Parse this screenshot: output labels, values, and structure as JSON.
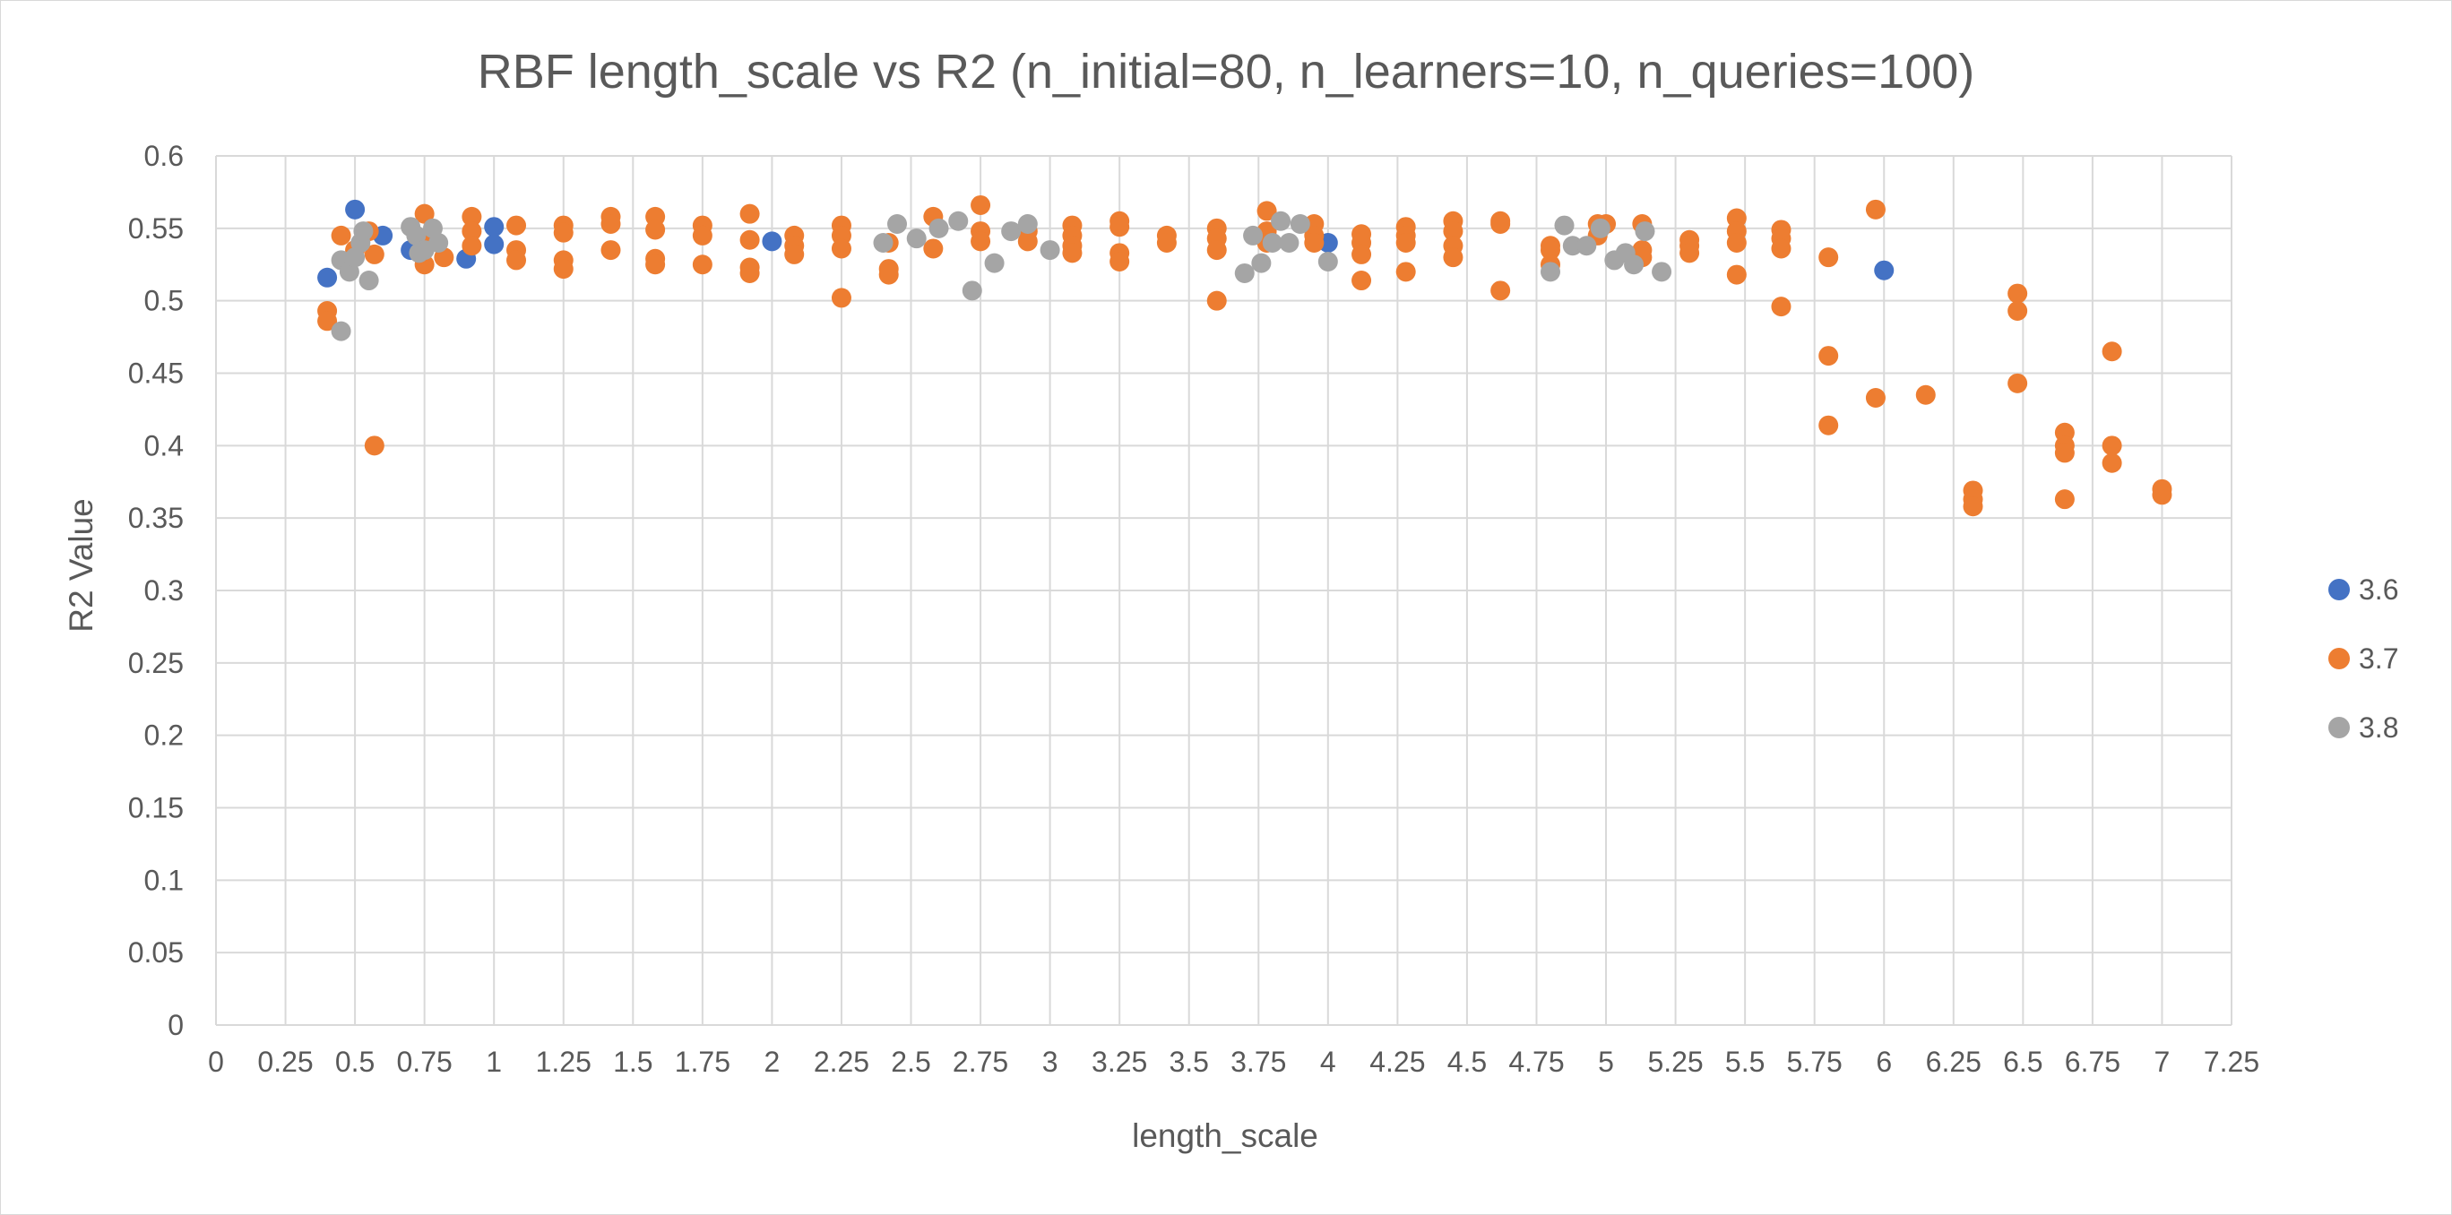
{
  "chart_data": {
    "type": "scatter",
    "title": "RBF length_scale vs R2 (n_initial=80, n_learners=10, n_queries=100)",
    "xlabel": "length_scale",
    "ylabel": "R2 Value",
    "xlim": [
      0,
      7.25
    ],
    "ylim": [
      0,
      0.6
    ],
    "x_ticks": [
      "0",
      "0.25",
      "0.5",
      "0.75",
      "1",
      "1.25",
      "1.5",
      "1.75",
      "2",
      "2.25",
      "2.5",
      "2.75",
      "3",
      "3.25",
      "3.5",
      "3.75",
      "4",
      "4.25",
      "4.5",
      "4.75",
      "5",
      "5.25",
      "5.5",
      "5.75",
      "6",
      "6.25",
      "6.5",
      "6.75",
      "7",
      "7.25"
    ],
    "y_ticks": [
      "0",
      "0.05",
      "0.1",
      "0.15",
      "0.2",
      "0.25",
      "0.3",
      "0.35",
      "0.4",
      "0.45",
      "0.5",
      "0.55",
      "0.6"
    ],
    "grid": true,
    "legend_position": "right",
    "series": [
      {
        "name": "3.6",
        "color": "#4472C4",
        "points": [
          [
            0.4,
            0.516
          ],
          [
            0.5,
            0.563
          ],
          [
            0.6,
            0.545
          ],
          [
            0.9,
            0.529
          ],
          [
            1.0,
            0.551
          ],
          [
            1.0,
            0.539
          ],
          [
            2.0,
            0.541
          ],
          [
            4.0,
            0.54
          ],
          [
            6.0,
            0.521
          ],
          [
            0.7,
            0.535
          ]
        ]
      },
      {
        "name": "3.7",
        "color": "#ED7D31",
        "points": [
          [
            0.4,
            0.493
          ],
          [
            0.4,
            0.486
          ],
          [
            0.45,
            0.545
          ],
          [
            0.5,
            0.535
          ],
          [
            0.55,
            0.548
          ],
          [
            0.57,
            0.532
          ],
          [
            0.57,
            0.4
          ],
          [
            0.75,
            0.56
          ],
          [
            0.75,
            0.525
          ],
          [
            0.75,
            0.54
          ],
          [
            0.82,
            0.53
          ],
          [
            0.92,
            0.558
          ],
          [
            0.92,
            0.548
          ],
          [
            0.92,
            0.538
          ],
          [
            1.08,
            0.552
          ],
          [
            1.08,
            0.535
          ],
          [
            1.08,
            0.528
          ],
          [
            1.25,
            0.552
          ],
          [
            1.25,
            0.547
          ],
          [
            1.25,
            0.528
          ],
          [
            1.25,
            0.522
          ],
          [
            1.42,
            0.558
          ],
          [
            1.42,
            0.553
          ],
          [
            1.42,
            0.535
          ],
          [
            1.58,
            0.558
          ],
          [
            1.58,
            0.549
          ],
          [
            1.58,
            0.529
          ],
          [
            1.58,
            0.525
          ],
          [
            1.75,
            0.552
          ],
          [
            1.75,
            0.545
          ],
          [
            1.75,
            0.525
          ],
          [
            1.92,
            0.56
          ],
          [
            1.92,
            0.542
          ],
          [
            1.92,
            0.523
          ],
          [
            1.92,
            0.519
          ],
          [
            2.08,
            0.545
          ],
          [
            2.08,
            0.538
          ],
          [
            2.08,
            0.532
          ],
          [
            2.25,
            0.552
          ],
          [
            2.25,
            0.545
          ],
          [
            2.25,
            0.536
          ],
          [
            2.25,
            0.502
          ],
          [
            2.42,
            0.54
          ],
          [
            2.42,
            0.522
          ],
          [
            2.42,
            0.518
          ],
          [
            2.58,
            0.558
          ],
          [
            2.58,
            0.536
          ],
          [
            2.75,
            0.566
          ],
          [
            2.75,
            0.548
          ],
          [
            2.75,
            0.541
          ],
          [
            2.92,
            0.548
          ],
          [
            2.92,
            0.541
          ],
          [
            3.08,
            0.552
          ],
          [
            3.08,
            0.545
          ],
          [
            3.08,
            0.538
          ],
          [
            3.08,
            0.533
          ],
          [
            3.25,
            0.555
          ],
          [
            3.25,
            0.551
          ],
          [
            3.25,
            0.533
          ],
          [
            3.25,
            0.527
          ],
          [
            3.42,
            0.545
          ],
          [
            3.42,
            0.54
          ],
          [
            3.6,
            0.55
          ],
          [
            3.6,
            0.543
          ],
          [
            3.6,
            0.535
          ],
          [
            3.6,
            0.5
          ],
          [
            3.78,
            0.562
          ],
          [
            3.78,
            0.548
          ],
          [
            3.78,
            0.54
          ],
          [
            3.95,
            0.553
          ],
          [
            3.95,
            0.545
          ],
          [
            3.95,
            0.54
          ],
          [
            4.12,
            0.546
          ],
          [
            4.12,
            0.54
          ],
          [
            4.12,
            0.532
          ],
          [
            4.12,
            0.514
          ],
          [
            4.28,
            0.551
          ],
          [
            4.28,
            0.545
          ],
          [
            4.28,
            0.54
          ],
          [
            4.28,
            0.52
          ],
          [
            4.45,
            0.555
          ],
          [
            4.45,
            0.548
          ],
          [
            4.45,
            0.538
          ],
          [
            4.45,
            0.53
          ],
          [
            4.62,
            0.555
          ],
          [
            4.62,
            0.553
          ],
          [
            4.62,
            0.507
          ],
          [
            4.8,
            0.538
          ],
          [
            4.8,
            0.535
          ],
          [
            4.8,
            0.525
          ],
          [
            4.97,
            0.553
          ],
          [
            4.97,
            0.545
          ],
          [
            5.0,
            0.553
          ],
          [
            5.13,
            0.553
          ],
          [
            5.13,
            0.535
          ],
          [
            5.13,
            0.53
          ],
          [
            5.3,
            0.542
          ],
          [
            5.3,
            0.538
          ],
          [
            5.3,
            0.533
          ],
          [
            5.47,
            0.557
          ],
          [
            5.47,
            0.548
          ],
          [
            5.47,
            0.54
          ],
          [
            5.47,
            0.518
          ],
          [
            5.63,
            0.549
          ],
          [
            5.63,
            0.543
          ],
          [
            5.63,
            0.536
          ],
          [
            5.63,
            0.496
          ],
          [
            5.8,
            0.53
          ],
          [
            5.8,
            0.462
          ],
          [
            5.8,
            0.414
          ],
          [
            5.97,
            0.563
          ],
          [
            5.97,
            0.433
          ],
          [
            6.15,
            0.435
          ],
          [
            6.32,
            0.369
          ],
          [
            6.32,
            0.363
          ],
          [
            6.32,
            0.358
          ],
          [
            6.48,
            0.505
          ],
          [
            6.48,
            0.493
          ],
          [
            6.48,
            0.443
          ],
          [
            6.65,
            0.409
          ],
          [
            6.65,
            0.4
          ],
          [
            6.65,
            0.395
          ],
          [
            6.65,
            0.363
          ],
          [
            6.82,
            0.465
          ],
          [
            6.82,
            0.4
          ],
          [
            6.82,
            0.388
          ],
          [
            7.0,
            0.37
          ],
          [
            7.0,
            0.366
          ]
        ]
      },
      {
        "name": "3.8",
        "color": "#A5A5A5",
        "points": [
          [
            0.45,
            0.479
          ],
          [
            0.45,
            0.528
          ],
          [
            0.48,
            0.52
          ],
          [
            0.5,
            0.53
          ],
          [
            0.52,
            0.54
          ],
          [
            0.53,
            0.548
          ],
          [
            0.55,
            0.514
          ],
          [
            0.7,
            0.551
          ],
          [
            0.72,
            0.545
          ],
          [
            0.75,
            0.535
          ],
          [
            0.78,
            0.55
          ],
          [
            0.8,
            0.54
          ],
          [
            0.73,
            0.533
          ],
          [
            2.4,
            0.54
          ],
          [
            2.45,
            0.553
          ],
          [
            2.52,
            0.543
          ],
          [
            2.6,
            0.55
          ],
          [
            2.67,
            0.555
          ],
          [
            2.72,
            0.507
          ],
          [
            2.8,
            0.526
          ],
          [
            2.86,
            0.548
          ],
          [
            2.92,
            0.553
          ],
          [
            3.0,
            0.535
          ],
          [
            3.7,
            0.519
          ],
          [
            3.73,
            0.545
          ],
          [
            3.76,
            0.526
          ],
          [
            3.8,
            0.54
          ],
          [
            3.83,
            0.555
          ],
          [
            3.86,
            0.54
          ],
          [
            3.9,
            0.553
          ],
          [
            4.0,
            0.527
          ],
          [
            4.8,
            0.52
          ],
          [
            4.85,
            0.552
          ],
          [
            4.88,
            0.538
          ],
          [
            4.93,
            0.538
          ],
          [
            4.98,
            0.55
          ],
          [
            5.03,
            0.528
          ],
          [
            5.07,
            0.533
          ],
          [
            5.1,
            0.525
          ],
          [
            5.14,
            0.548
          ],
          [
            5.2,
            0.52
          ]
        ]
      }
    ]
  }
}
